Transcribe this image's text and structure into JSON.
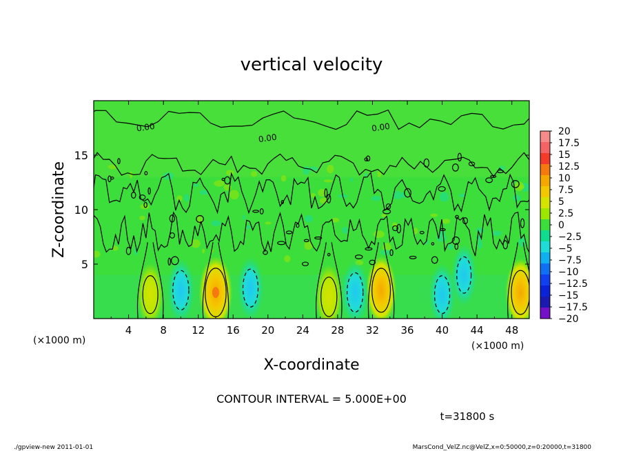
{
  "chart_data": {
    "type": "heatmap",
    "title": "vertical velocity",
    "xlabel": "X-coordinate",
    "ylabel": "Z-coordinate",
    "x_unit_left": "(×1000 m)",
    "x_unit_right": "(×1000 m)",
    "xlim": [
      0,
      50
    ],
    "ylim": [
      0,
      20
    ],
    "x_ticks": [
      4,
      8,
      12,
      16,
      20,
      24,
      28,
      32,
      36,
      40,
      44,
      48
    ],
    "y_ticks": [
      5,
      10,
      15
    ],
    "contour_label": "0.00",
    "contour_interval_text": "CONTOUR INTERVAL = 5.000E+00",
    "time_text": "t=31800 s",
    "colorbar": {
      "levels": [
        20,
        17.5,
        15,
        12.5,
        10,
        7.5,
        5,
        2.5,
        0,
        -2.5,
        -5,
        -7.5,
        -10,
        -12.5,
        -15,
        -17.5,
        -20
      ],
      "labels": [
        "20",
        "17.5",
        "15",
        "12.5",
        "10",
        "7.5",
        "5",
        "2.5",
        "0",
        "−2.5",
        "−5",
        "−7.5",
        "−10",
        "−12.5",
        "−15",
        "−17.5",
        "−20"
      ],
      "colors": [
        "#f48a8a",
        "#f46464",
        "#f43a2a",
        "#f47a10",
        "#f4a800",
        "#f4c800",
        "#d4e400",
        "#9ce600",
        "#3cde3c",
        "#10dc90",
        "#20dcd8",
        "#10b0f0",
        "#1070f4",
        "#1040f0",
        "#0a22d8",
        "#1a1ab0",
        "#7410c8"
      ]
    },
    "features": [
      {
        "type": "updraft",
        "x": 14,
        "z": 2.4,
        "peak": 12
      },
      {
        "type": "updraft",
        "x": 33,
        "z": 2.6,
        "peak": 9
      },
      {
        "type": "updraft",
        "x": 49,
        "z": 2.4,
        "peak": 9
      },
      {
        "type": "updraft",
        "x": 27,
        "z": 2.0,
        "peak": 6
      },
      {
        "type": "updraft",
        "x": 6.5,
        "z": 2.2,
        "peak": 5
      },
      {
        "type": "downdraft",
        "x": 10,
        "z": 2.6,
        "peak": -6
      },
      {
        "type": "downdraft",
        "x": 18,
        "z": 2.8,
        "peak": -5
      },
      {
        "type": "downdraft",
        "x": 30,
        "z": 2.4,
        "peak": -6
      },
      {
        "type": "downdraft",
        "x": 40,
        "z": 2.2,
        "peak": -5
      },
      {
        "type": "downdraft",
        "x": 42.5,
        "z": 4.0,
        "peak": -4
      }
    ],
    "contour_labels_at": [
      {
        "x": 6,
        "z": 17.3
      },
      {
        "x": 20,
        "z": 16.3
      },
      {
        "x": 33,
        "z": 17.3
      }
    ]
  },
  "footer": {
    "left": "./gpview-new   2011-01-01",
    "right": "MarsCond_VelZ.nc@VelZ,x=0:50000,z=0:20000,t=31800"
  }
}
